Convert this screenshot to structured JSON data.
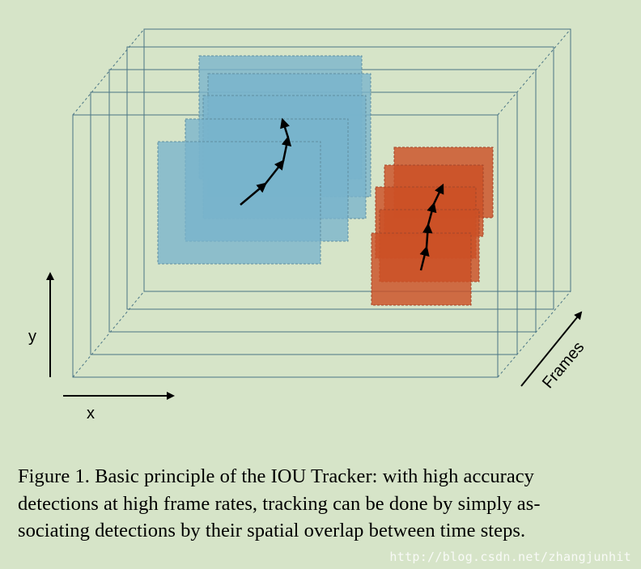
{
  "diagram": {
    "axes": {
      "y_label": "y",
      "x_label": "x",
      "frames_label": "Frames"
    }
  },
  "caption": {
    "lines": [
      "Figure 1. Basic principle of the IOU Tracker: with high accuracy",
      "detections at high frame rates, tracking can be done by simply as-",
      "sociating detections by their spatial overlap between time steps."
    ]
  },
  "watermark": "http://blog.csdn.net/zhangjunhit",
  "colors": {
    "background": "#d6e4c8",
    "frame_outline": "#4a7585",
    "blue_detection": "#79b3cc",
    "red_detection": "#cc5026",
    "arrow": "#000000"
  }
}
